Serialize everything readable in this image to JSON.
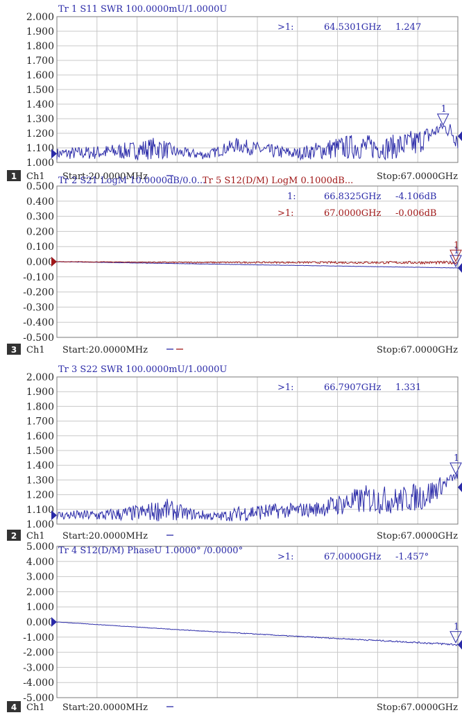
{
  "colors": {
    "trace_blue": "#2a2aa8",
    "trace_red": "#a01818",
    "grid": "#c8c8c8",
    "frame": "#7a7a7a",
    "channel_box": "#333333"
  },
  "chart_data": [
    {
      "type": "line",
      "header": [
        {
          "text": "Tr 1  S11 SWR 100.0000mU/1.0000U",
          "color": "blue"
        }
      ],
      "markers": [
        {
          "prefix": ">1:",
          "freq": "64.5301GHz",
          "value": "1.247",
          "color": "blue"
        }
      ],
      "marker_label": "1",
      "yticks": [
        "2.000",
        "1.900",
        "1.800",
        "1.700",
        "1.600",
        "1.500",
        "1.400",
        "1.300",
        "1.200",
        "1.100",
        "1.000"
      ],
      "ylim": [
        1.0,
        2.0
      ],
      "xlim_ghz": [
        0.02,
        67.0
      ],
      "footer": {
        "channel_num": "1",
        "channel": "Ch1",
        "start": "Start:20.0000MHz",
        "stop": "Stop:67.0000GHz"
      },
      "series": [
        {
          "color": "blue",
          "x": [
            0.02,
            8,
            12,
            17,
            20,
            25,
            30,
            35,
            40,
            45,
            50,
            55,
            60,
            64.53,
            67
          ],
          "y": [
            1.06,
            1.07,
            1.08,
            1.1,
            1.07,
            1.05,
            1.12,
            1.08,
            1.06,
            1.09,
            1.11,
            1.1,
            1.13,
            1.247,
            1.18
          ],
          "noise": [
            0.04,
            0.05,
            0.06,
            0.08,
            0.04,
            0.03,
            0.05,
            0.05,
            0.04,
            0.07,
            0.09,
            0.08,
            0.1,
            0.03,
            0.1
          ]
        }
      ],
      "marker_points": [
        {
          "x": 64.53,
          "y": 1.247,
          "color": "blue"
        }
      ]
    },
    {
      "type": "line",
      "header": [
        {
          "text": "Tr 2  S21 LogM 10.0000dB/0.0...",
          "color": "blue"
        },
        {
          "text": "Tr 5  S12(D/M) LogM 0.1000dB...",
          "color": "red"
        }
      ],
      "markers": [
        {
          "prefix": "1:",
          "freq": "66.8325GHz",
          "value": "-4.106dB",
          "color": "blue"
        },
        {
          "prefix": ">1:",
          "freq": "67.0000GHz",
          "value": "-0.006dB",
          "color": "red"
        }
      ],
      "marker_label": "1",
      "yticks": [
        "0.500",
        "0.400",
        "0.300",
        "0.200",
        "0.100",
        "0.000",
        "-0.100",
        "-0.200",
        "-0.300",
        "-0.400",
        "-0.500"
      ],
      "ylim": [
        -0.5,
        0.5
      ],
      "xlim_ghz": [
        0.02,
        67.0
      ],
      "footer": {
        "channel_num": "3",
        "channel": "Ch1",
        "start": "Start:20.0000MHz",
        "stop": "Stop:67.0000GHz"
      },
      "series": [
        {
          "color": "blue",
          "x": [
            0.02,
            67
          ],
          "y": [
            0.0,
            -0.041
          ],
          "noise": [
            0.001,
            0.001
          ]
        },
        {
          "color": "red",
          "x": [
            0.02,
            20,
            40,
            67
          ],
          "y": [
            0.0,
            -0.005,
            -0.005,
            -0.006
          ],
          "noise": [
            0.002,
            0.004,
            0.006,
            0.01
          ]
        }
      ],
      "marker_points": [
        {
          "x": 66.83,
          "y": -0.041,
          "color": "blue"
        },
        {
          "x": 67.0,
          "y": -0.006,
          "color": "red"
        }
      ]
    },
    {
      "type": "line",
      "header": [
        {
          "text": "Tr 3  S22 SWR 100.0000mU/1.0000U",
          "color": "blue"
        }
      ],
      "markers": [
        {
          "prefix": ">1:",
          "freq": "66.7907GHz",
          "value": "1.331",
          "color": "blue"
        }
      ],
      "marker_label": "1",
      "yticks": [
        "2.000",
        "1.900",
        "1.800",
        "1.700",
        "1.600",
        "1.500",
        "1.400",
        "1.300",
        "1.200",
        "1.100",
        "1.000"
      ],
      "ylim": [
        1.0,
        2.0
      ],
      "xlim_ghz": [
        0.02,
        67.0
      ],
      "footer": {
        "channel_num": "2",
        "channel": "Ch1",
        "start": "Start:20.0000MHz",
        "stop": "Stop:67.0000GHz"
      },
      "series": [
        {
          "color": "blue",
          "x": [
            0.02,
            8,
            15,
            18,
            22,
            27,
            32,
            38,
            43,
            48,
            52,
            57,
            62,
            66.79,
            67
          ],
          "y": [
            1.06,
            1.06,
            1.08,
            1.1,
            1.07,
            1.05,
            1.08,
            1.09,
            1.1,
            1.14,
            1.17,
            1.16,
            1.2,
            1.331,
            1.25
          ],
          "noise": [
            0.03,
            0.04,
            0.06,
            0.08,
            0.04,
            0.03,
            0.06,
            0.05,
            0.05,
            0.08,
            0.1,
            0.09,
            0.1,
            0.02,
            0.12
          ]
        }
      ],
      "marker_points": [
        {
          "x": 66.79,
          "y": 1.331,
          "color": "blue"
        }
      ]
    },
    {
      "type": "line",
      "header": [
        {
          "text": "Tr 4  S12(D/M) PhaseU 1.0000° /0.0000°",
          "color": "blue"
        }
      ],
      "markers": [
        {
          "prefix": ">1:",
          "freq": "67.0000GHz",
          "value": "-1.457°",
          "color": "blue"
        }
      ],
      "marker_label": "1",
      "yticks": [
        "5.000",
        "4.000",
        "3.000",
        "2.000",
        "1.000",
        "0.000",
        "-1.000",
        "-2.000",
        "-3.000",
        "-4.000",
        "-5.000"
      ],
      "ylim": [
        -5.0,
        5.0
      ],
      "xlim_ghz": [
        0.02,
        67.0
      ],
      "footer": {
        "channel_num": "4",
        "channel": "Ch1",
        "start": "Start:20.0000MHz",
        "stop": "Stop:67.0000GHz"
      },
      "series": [
        {
          "color": "blue",
          "x": [
            0.02,
            20,
            40,
            60,
            67
          ],
          "y": [
            0.0,
            -0.5,
            -0.95,
            -1.35,
            -1.5
          ],
          "noise": [
            0.01,
            0.02,
            0.03,
            0.05,
            0.08
          ]
        }
      ],
      "marker_points": [
        {
          "x": 67.0,
          "y": -1.457,
          "color": "blue"
        }
      ]
    }
  ]
}
